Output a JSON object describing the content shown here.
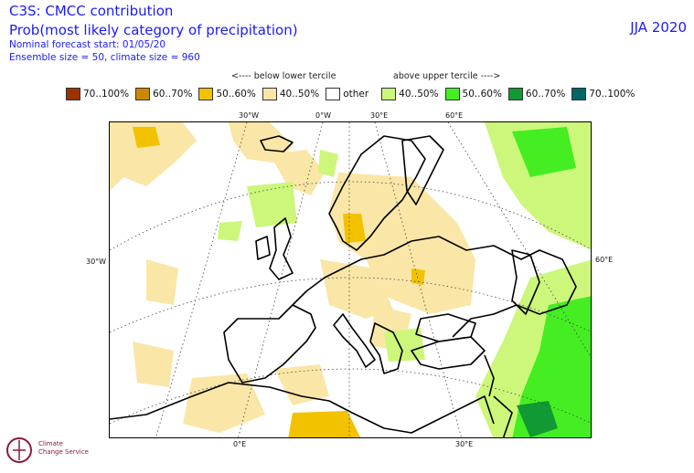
{
  "header": {
    "title": "C3S: CMCC contribution",
    "subtitle": "Prob(most likely category of precipitation)",
    "forecast_start": "Nominal forecast start: 01/05/20",
    "ensemble": "Ensemble size = 50, climate size = 960",
    "season": "JJA 2020"
  },
  "tercile": {
    "below": "<---- below lower tercile",
    "above": "above upper tercile ---->"
  },
  "legend": [
    {
      "label": "70..100%",
      "color": "#993300"
    },
    {
      "label": "60..70%",
      "color": "#cc8800"
    },
    {
      "label": "50..60%",
      "color": "#f2c200"
    },
    {
      "label": "40..50%",
      "color": "#fae6a6"
    },
    {
      "label": "other",
      "color": "#ffffff"
    },
    {
      "label": "40..50%",
      "color": "#ccf77a"
    },
    {
      "label": "50..60%",
      "color": "#44ee22"
    },
    {
      "label": "60..70%",
      "color": "#119933"
    },
    {
      "label": "70..100%",
      "color": "#006666"
    }
  ],
  "axis_labels": {
    "top": [
      "30°W",
      "0°W",
      "30°E",
      "60°E"
    ],
    "left": "30°W",
    "right": "60°E",
    "bottom": [
      "0°E",
      "30°E"
    ]
  },
  "logo": {
    "line1": "Climate",
    "line2": "Change Service"
  }
}
